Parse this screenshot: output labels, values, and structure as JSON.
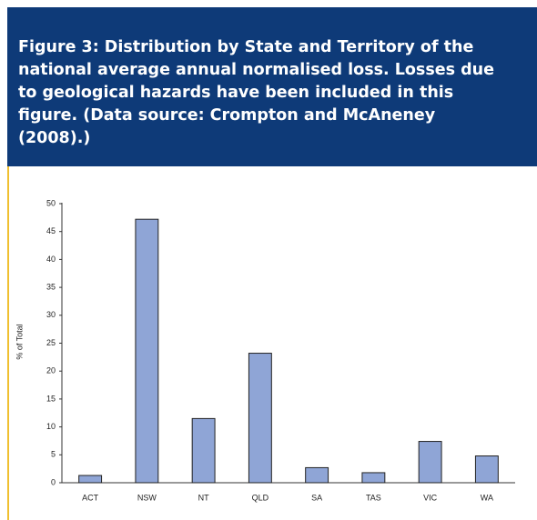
{
  "chart_data": {
    "type": "bar",
    "title": "Figure 3: Distribution by State and Territory of the national average annual normalised loss. Losses due to geological hazards have been included in this figure. (Data source: Crompton and McAneney (2008).)",
    "y_label": "% of Total",
    "categories": [
      "ACT",
      "NSW",
      "NT",
      "QLD",
      "SA",
      "TAS",
      "VIC",
      "WA"
    ],
    "values": [
      1.3,
      47.2,
      11.5,
      23.2,
      2.7,
      1.8,
      7.4,
      4.8
    ],
    "color": "#8fa5d6",
    "ylim": [
      0,
      50
    ],
    "yticks": [
      0,
      5,
      10,
      15,
      20,
      25,
      30,
      35,
      40,
      45,
      50
    ],
    "grid": false
  }
}
